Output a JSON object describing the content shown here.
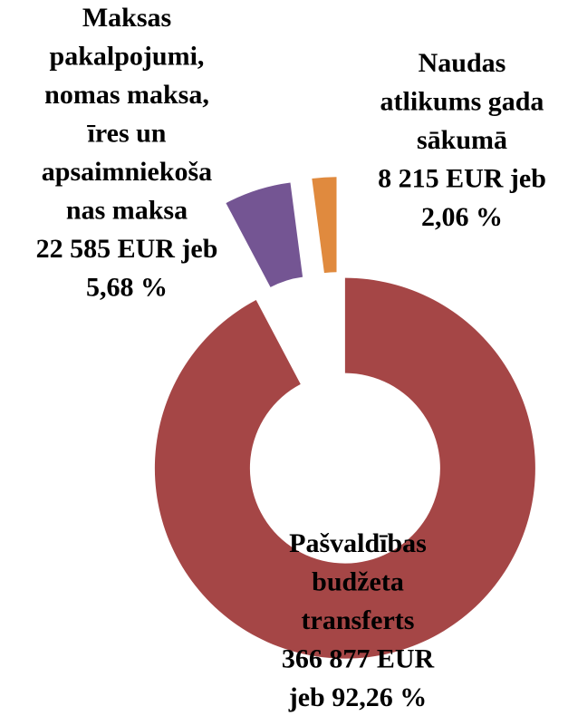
{
  "chart_data": {
    "type": "donut",
    "categories": [
      [
        "Pašvaldības",
        "budžeta",
        "transferts"
      ],
      [
        "Maksas",
        "pakalpojumi,",
        "nomas maksa,",
        "īres un",
        "apsaimniekoša",
        "nas maksa"
      ],
      [
        "Naudas",
        "atlikums gada",
        "sākumā"
      ]
    ],
    "values": [
      366877,
      22585,
      8215
    ],
    "value_labels": [
      [
        "366 877 EUR",
        "jeb 92,26 %"
      ],
      [
        "22 585 EUR jeb",
        "5,68 %"
      ],
      [
        "8 215 EUR jeb",
        "2,06 %"
      ]
    ],
    "colors": [
      "#a54646",
      "#745593",
      "#e08a3e"
    ]
  }
}
